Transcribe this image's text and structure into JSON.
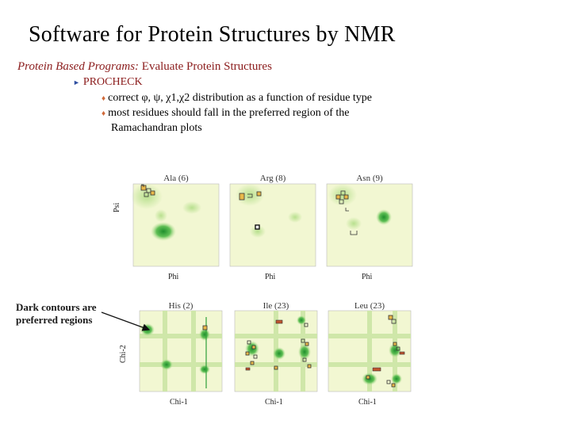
{
  "slide": {
    "title": "Software for Protein Structures by NMR",
    "subtitle_italic": "Protein Based Programs:",
    "subtitle_rest": " Evaluate Protein Structures",
    "program": "PROCHECK",
    "bullets": [
      "correct φ, ψ, χ1,χ2 distribution as a function of residue type",
      "most residues should fall in the preferred region of the",
      "Ramachandran plots"
    ],
    "callout_line1": "Dark contours are",
    "callout_line2": "preferred regions"
  },
  "colors": {
    "title": "#000000",
    "subtitle": "#8b1c1c",
    "plot_bg": "#f2f7d2",
    "contour_light": "#cde8a6",
    "contour_dark": "#2f9e3a",
    "marker_fill": "#e8b84a",
    "marker_dark": "#222222"
  },
  "top_row": {
    "x_label": "Phi",
    "y_label": "Psi",
    "panels": [
      {
        "title": "Ala (6)"
      },
      {
        "title": "Arg (8)"
      },
      {
        "title": "Asn (9)"
      }
    ]
  },
  "bottom_row": {
    "x_label": "Chi-1",
    "y_label": "Chi-2",
    "panels": [
      {
        "title": "His (2)"
      },
      {
        "title": "Ile (23)"
      },
      {
        "title": "Leu (23)"
      }
    ]
  }
}
